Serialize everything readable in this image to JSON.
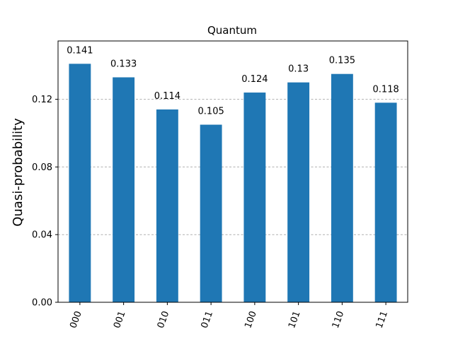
{
  "chart_data": {
    "type": "bar",
    "title": "Quantum",
    "xlabel": "",
    "ylabel": "Quasi-probability",
    "categories": [
      "000",
      "001",
      "010",
      "011",
      "100",
      "101",
      "110",
      "111"
    ],
    "values": [
      0.141,
      0.133,
      0.114,
      0.105,
      0.124,
      0.13,
      0.135,
      0.118
    ],
    "value_labels": [
      "0.141",
      "0.133",
      "0.114",
      "0.105",
      "0.124",
      "0.13",
      "0.135",
      "0.118"
    ],
    "yticks": [
      0.0,
      0.04,
      0.08,
      0.12
    ],
    "ytick_labels": [
      "0.00",
      "0.04",
      "0.08",
      "0.12"
    ],
    "ylim": [
      0,
      0.1545
    ],
    "grid": true,
    "legend": "none",
    "bar_color": "#1f77b4",
    "grid_color": "#b0b0b0"
  }
}
